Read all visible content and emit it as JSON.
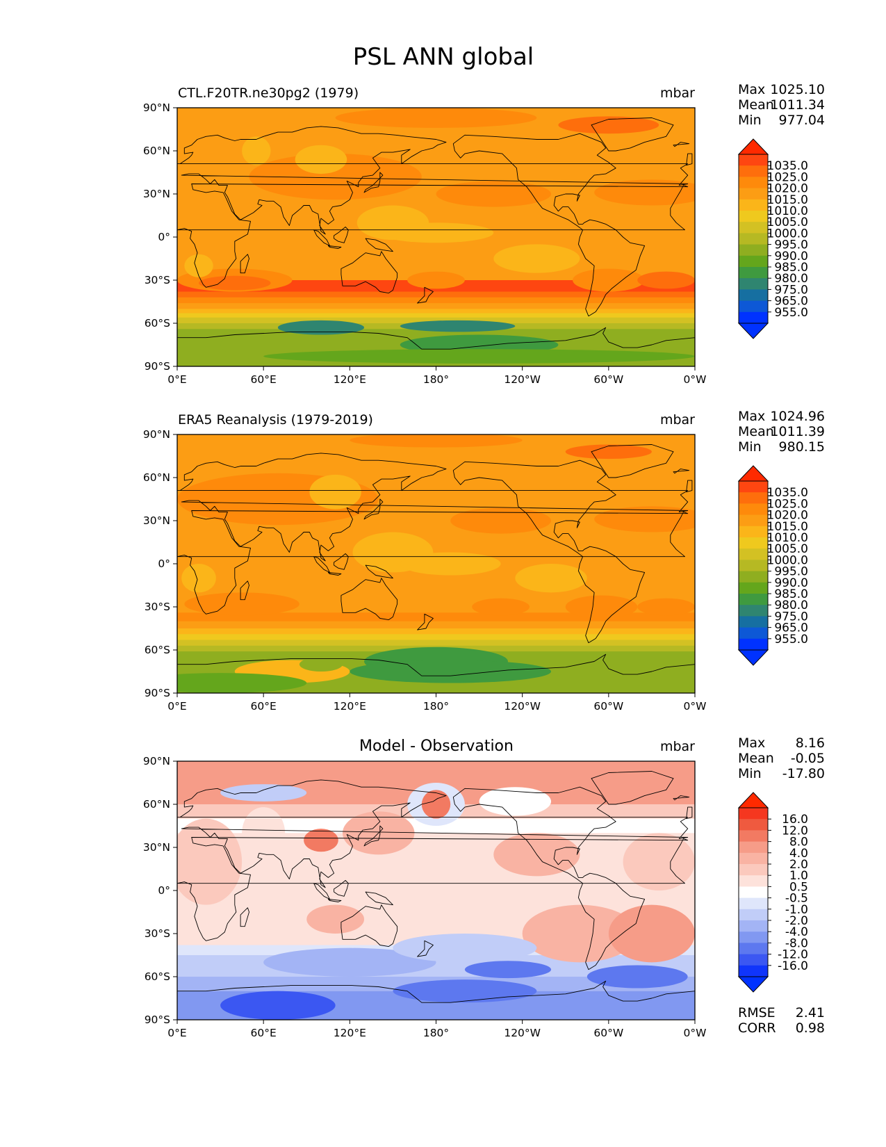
{
  "chart_data": {
    "type": "heatmap",
    "title": "PSL ANN global",
    "xticks": [
      "0°E",
      "60°E",
      "120°E",
      "180°",
      "120°W",
      "60°W",
      "0°W"
    ],
    "yticks": [
      "90°N",
      "60°N",
      "30°N",
      "0°",
      "30°S",
      "60°S",
      "90°S"
    ],
    "xlim": [
      0,
      360
    ],
    "ylim": [
      -90,
      90
    ],
    "panels": [
      {
        "name": "model",
        "title": "CTL.F20TR.ne30pg2 (1979)",
        "units": "mbar",
        "stats": [
          {
            "label": "Max",
            "value": "1025.10"
          },
          {
            "label": "Mean",
            "value": "1011.34"
          },
          {
            "label": "Min",
            "value": "977.04"
          }
        ],
        "colorbar": {
          "labels": [
            "1035.0",
            "1025.0",
            "1020.0",
            "1015.0",
            "1010.0",
            "1005.0",
            "1000.0",
            "995.0",
            "990.0",
            "985.0",
            "980.0",
            "975.0",
            "965.0",
            "955.0"
          ],
          "colors": [
            "#fe4611",
            "#fe6e0c",
            "#fe8a0b",
            "#fc9d14",
            "#fbb519",
            "#efc91e",
            "#d3c123",
            "#b6b923",
            "#8fae20",
            "#64a61c",
            "#3f9a3f",
            "#2f8570",
            "#166fa1",
            "#0d58d6",
            "#0032ff"
          ],
          "over_color": "#ff2a00",
          "under_color": "#0032ff"
        }
      },
      {
        "name": "obs",
        "title": "ERA5 Reanalysis (1979-2019)",
        "units": "mbar",
        "stats": [
          {
            "label": "Max",
            "value": "1024.96"
          },
          {
            "label": "Mean",
            "value": "1011.39"
          },
          {
            "label": "Min",
            "value": "980.15"
          }
        ],
        "colorbar": {
          "labels": [
            "1035.0",
            "1025.0",
            "1020.0",
            "1015.0",
            "1010.0",
            "1005.0",
            "1000.0",
            "995.0",
            "990.0",
            "985.0",
            "980.0",
            "975.0",
            "965.0",
            "955.0"
          ],
          "colors": [
            "#fe4611",
            "#fe6e0c",
            "#fe8a0b",
            "#fc9d14",
            "#fbb519",
            "#efc91e",
            "#d3c123",
            "#b6b923",
            "#8fae20",
            "#64a61c",
            "#3f9a3f",
            "#2f8570",
            "#166fa1",
            "#0d58d6",
            "#0032ff"
          ],
          "over_color": "#ff2a00",
          "under_color": "#0032ff"
        }
      },
      {
        "name": "diff",
        "title": "Model - Observation",
        "units": "mbar",
        "stats": [
          {
            "label": "Max",
            "value": "8.16"
          },
          {
            "label": "Mean",
            "value": "-0.05"
          },
          {
            "label": "Min",
            "value": "-17.80"
          }
        ],
        "colorbar": {
          "labels": [
            "16.0",
            "12.0",
            "8.0",
            "4.0",
            "2.0",
            "1.0",
            "0.5",
            "-0.5",
            "-1.0",
            "-2.0",
            "-4.0",
            "-8.0",
            "-12.0",
            "-16.0"
          ],
          "colors": [
            "#f5371f",
            "#ef5a3f",
            "#f27a62",
            "#f69c88",
            "#f9b3a3",
            "#fbc9bd",
            "#fde2db",
            "#ffffff",
            "#dfe6fb",
            "#c1cdf8",
            "#a3b4f5",
            "#8198f1",
            "#5d78ef",
            "#3b57f2",
            "#1035fb"
          ],
          "over_color": "#ff2a00",
          "under_color": "#0032ff"
        },
        "metrics": [
          {
            "label": "RMSE",
            "value": "2.41"
          },
          {
            "label": "CORR",
            "value": "0.98"
          }
        ]
      }
    ]
  }
}
